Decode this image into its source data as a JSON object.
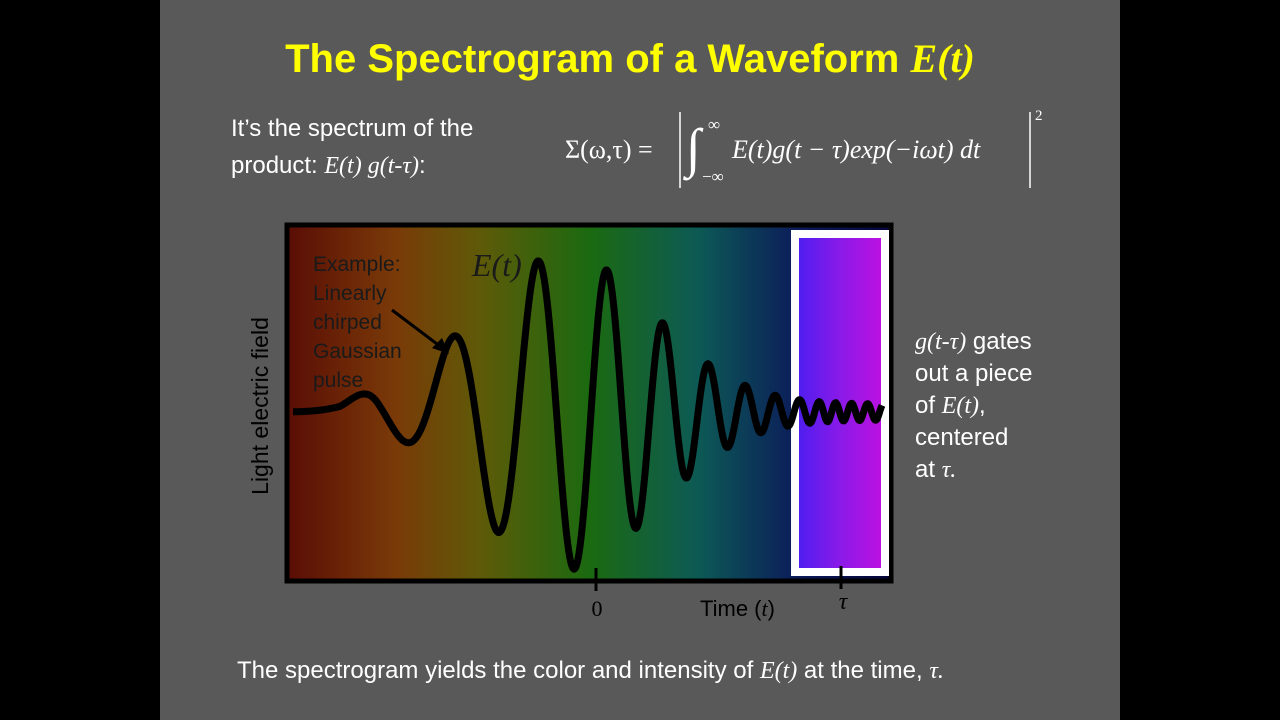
{
  "title": [
    {
      "text": "The Spectrogram of a Waveform "
    },
    {
      "text": "E(t)",
      "math": true
    }
  ],
  "intro": [
    [
      {
        "text": "It’s the spectrum of the"
      }
    ],
    [
      {
        "text": "product:  "
      },
      {
        "text": "E(t) g(t-τ)",
        "math": true
      },
      {
        "text": ":"
      }
    ]
  ],
  "formula": {
    "lhs": "Σ(ω,τ) =",
    "upper": "∞",
    "lower": "−∞",
    "integrand": "E(t)g(t − τ)exp(−iωt) dt",
    "power": "2"
  },
  "figure": {
    "annotation": [
      "Example:",
      "Linearly",
      "chirped",
      "Gaussian",
      "pulse"
    ],
    "wave_label": "E(t)",
    "y_label": "Light electric field",
    "x_tick": "0",
    "x_label": [
      {
        "text": "Time ("
      },
      {
        "text": "t",
        "math": true
      },
      {
        "text": ")"
      }
    ],
    "gate_label": "τ"
  },
  "side_note": [
    [
      {
        "text": "g(t-τ)",
        "math": true
      },
      {
        "text": " gates"
      }
    ],
    [
      {
        "text": "out a piece"
      }
    ],
    [
      {
        "text": "of "
      },
      {
        "text": "E(t)",
        "math": true
      },
      {
        "text": ","
      }
    ],
    [
      {
        "text": "centered"
      }
    ],
    [
      {
        "text": "at "
      },
      {
        "text": "τ.",
        "math": true
      }
    ]
  ],
  "footer": [
    {
      "text": "The spectrogram yields the color and intensity of "
    },
    {
      "text": "E(t)",
      "math": true
    },
    {
      "text": " at the time, "
    },
    {
      "text": "τ.",
      "math": true
    }
  ]
}
